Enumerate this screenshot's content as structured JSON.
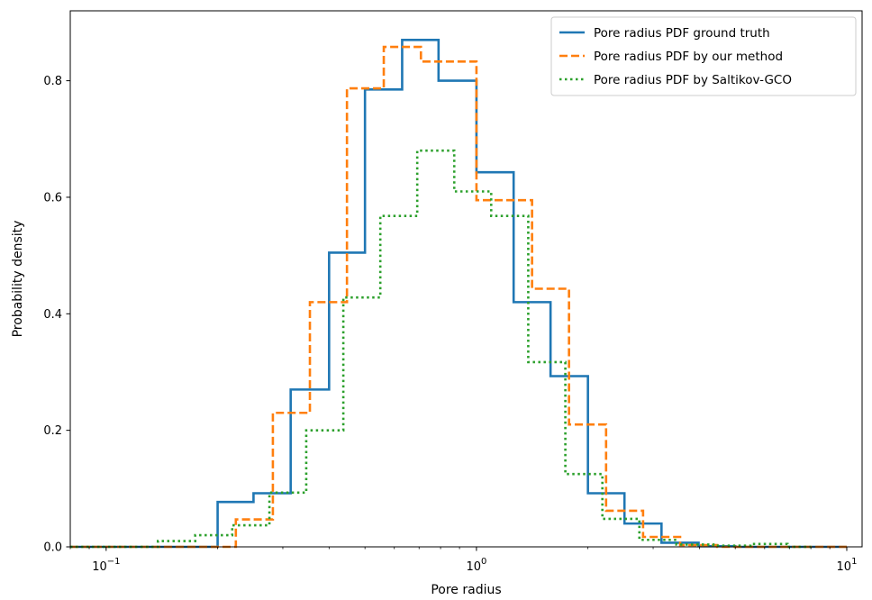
{
  "chart_data": {
    "type": "line",
    "title": "",
    "xlabel": "Pore radius",
    "ylabel": "Probability density",
    "xscale": "log",
    "xlim": [
      0.08,
      11
    ],
    "ylim": [
      0,
      0.92
    ],
    "grid": false,
    "legend_position": "top-right",
    "x_ticks": [
      {
        "value": 0.1,
        "base": "10",
        "exp": "−1"
      },
      {
        "value": 1,
        "base": "10",
        "exp": "0"
      },
      {
        "value": 10,
        "base": "10",
        "exp": "1"
      }
    ],
    "y_ticks": [
      {
        "value": 0.0,
        "label": "0.0"
      },
      {
        "value": 0.2,
        "label": "0.2"
      },
      {
        "value": 0.4,
        "label": "0.4"
      },
      {
        "value": 0.6,
        "label": "0.6"
      },
      {
        "value": 0.8,
        "label": "0.8"
      }
    ],
    "series": [
      {
        "name": "Pore radius PDF ground truth",
        "color": "#1f77b4",
        "style": "solid",
        "edges": [
          0.08,
          0.2,
          0.25,
          0.315,
          0.4,
          0.5,
          0.63,
          0.79,
          1.0,
          1.26,
          1.585,
          2.0,
          2.51,
          3.16,
          3.98,
          5.0,
          10.0
        ],
        "values": [
          0.0,
          0.077,
          0.092,
          0.27,
          0.505,
          0.785,
          0.87,
          0.8,
          0.643,
          0.42,
          0.293,
          0.092,
          0.04,
          0.007,
          0.001,
          0.0
        ]
      },
      {
        "name": "Pore radius PDF by our method",
        "color": "#ff7f0e",
        "style": "dashed",
        "edges": [
          0.08,
          0.224,
          0.282,
          0.355,
          0.447,
          0.562,
          0.708,
          0.891,
          1.0,
          1.122,
          1.413,
          1.778,
          2.239,
          2.818,
          3.548,
          4.467,
          10.0
        ],
        "values": [
          0.0,
          0.047,
          0.23,
          0.42,
          0.787,
          0.858,
          0.833,
          0.833,
          0.595,
          0.595,
          0.443,
          0.21,
          0.062,
          0.017,
          0.003,
          0.0
        ]
      },
      {
        "name": "Pore radius PDF by Saltikov-GCO",
        "color": "#2ca02c",
        "style": "dotted",
        "edges": [
          0.08,
          0.138,
          0.174,
          0.219,
          0.276,
          0.347,
          0.437,
          0.55,
          0.692,
          0.871,
          1.096,
          1.38,
          1.738,
          2.188,
          2.754,
          3.467,
          4.365,
          5.495,
          6.918,
          8.0
        ],
        "values": [
          0.0,
          0.01,
          0.02,
          0.037,
          0.093,
          0.2,
          0.428,
          0.568,
          0.68,
          0.61,
          0.568,
          0.317,
          0.125,
          0.048,
          0.012,
          0.004,
          0.002,
          0.005,
          0.0
        ]
      }
    ]
  }
}
